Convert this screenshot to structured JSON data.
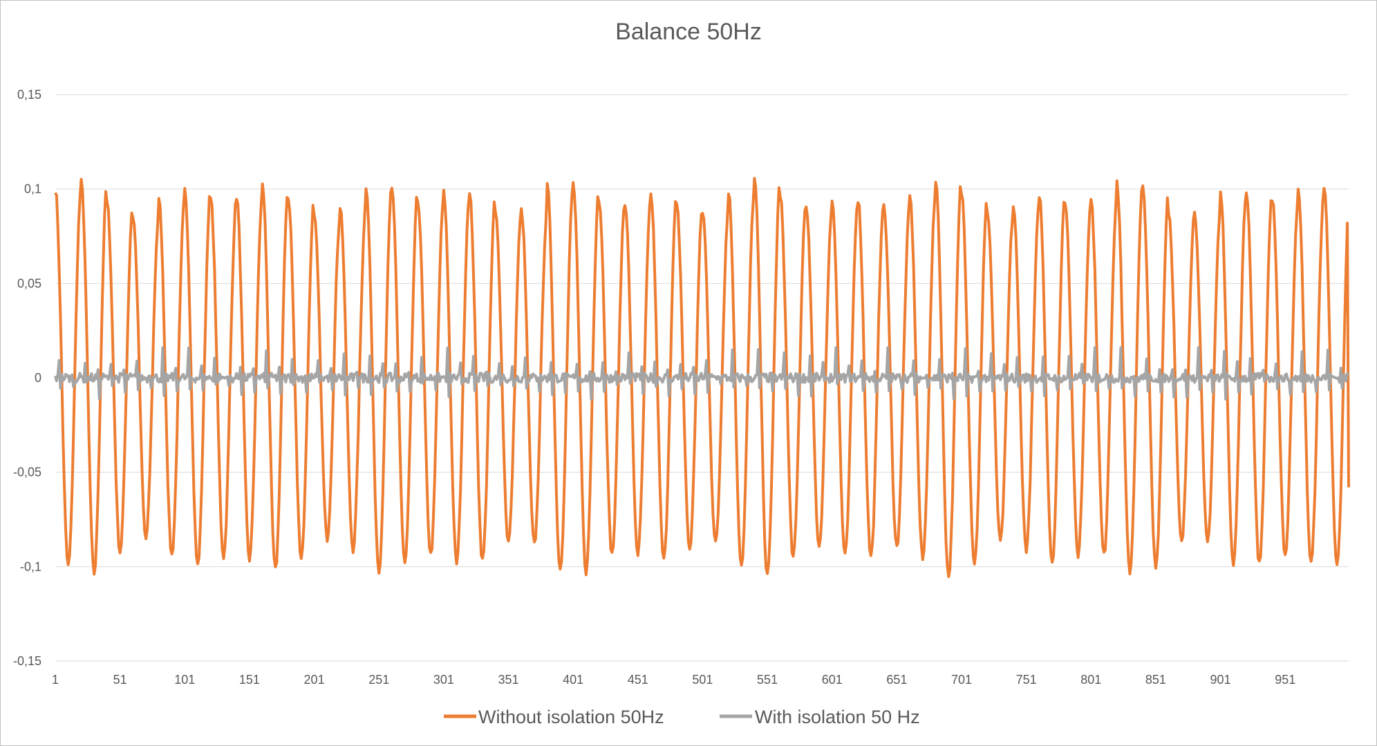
{
  "chart_data": {
    "type": "line",
    "title": "Balance 50Hz",
    "xlabel": "",
    "ylabel": "",
    "x_range": [
      1,
      1000
    ],
    "ylim": [
      -0.15,
      0.15
    ],
    "y_ticks": [
      0.15,
      0.1,
      0.05,
      0,
      -0.05,
      -0.1,
      -0.15
    ],
    "y_tick_labels": [
      "0,15",
      "0,1",
      "0,05",
      "0",
      "-0,05",
      "-0,1",
      "-0,15"
    ],
    "x_ticks": [
      1,
      51,
      101,
      151,
      201,
      251,
      301,
      351,
      401,
      451,
      501,
      551,
      601,
      651,
      701,
      751,
      801,
      851,
      901,
      951
    ],
    "x_tick_labels": [
      "1",
      "51",
      "101",
      "151",
      "201",
      "251",
      "301",
      "351",
      "401",
      "451",
      "501",
      "551",
      "601",
      "651",
      "701",
      "751",
      "801",
      "851",
      "901",
      "951"
    ],
    "grid": "horizontal",
    "legend_position": "bottom",
    "series": [
      {
        "name": "Without isolation 50Hz",
        "color": "#ED7D31",
        "period_samples": 20,
        "amplitude": 0.095,
        "start_value": 0.098,
        "end_value": -0.058,
        "max_value": 0.113,
        "min_value": -0.106
      },
      {
        "name": "With isolation 50 Hz",
        "color": "#A5A5A5",
        "typical_range": [
          -0.012,
          0.016
        ],
        "start_value": 0.001,
        "end_value": 0.002
      }
    ]
  }
}
